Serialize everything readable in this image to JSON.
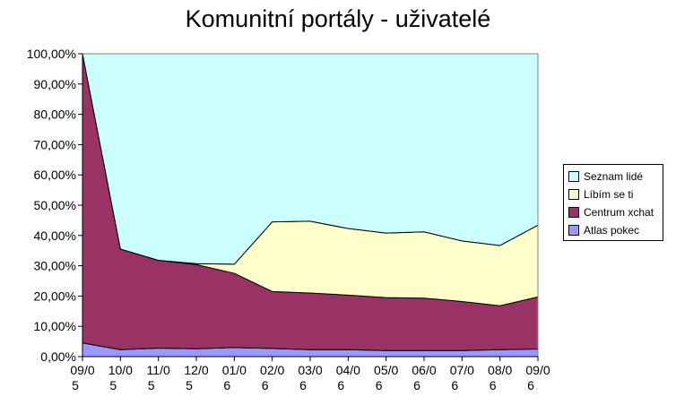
{
  "chart_data": {
    "type": "area",
    "stacked": "percent",
    "title": "Komunitní portály - uživatelé",
    "xlabel": "",
    "ylabel": "",
    "categories": [
      "09/05",
      "10/05",
      "11/05",
      "12/05",
      "01/06",
      "02/06",
      "03/06",
      "04/06",
      "05/06",
      "06/06",
      "07/06",
      "08/06",
      "09/06"
    ],
    "ylim": [
      0,
      100
    ],
    "yticks": [
      "0,00%",
      "10,00%",
      "20,00%",
      "30,00%",
      "40,00%",
      "50,00%",
      "60,00%",
      "70,00%",
      "80,00%",
      "90,00%",
      "100,00%"
    ],
    "grid": false,
    "legend_position": "right",
    "series": [
      {
        "name": "Atlas pokec",
        "color": "#9999ff",
        "values": [
          4.5,
          2.3,
          2.8,
          2.6,
          3.0,
          2.7,
          2.3,
          2.3,
          2.0,
          2.0,
          2.0,
          2.3,
          2.5
        ]
      },
      {
        "name": "Centrum xchat",
        "color": "#993366",
        "values": [
          95.5,
          33.2,
          29.0,
          27.8,
          24.5,
          18.8,
          18.7,
          18.0,
          17.5,
          17.3,
          16.2,
          14.5,
          17.2
        ]
      },
      {
        "name": "Líbím se ti",
        "color": "#ffffcc",
        "values": [
          0.0,
          0.0,
          0.0,
          0.3,
          3.0,
          23.0,
          23.7,
          22.0,
          21.3,
          21.9,
          20.0,
          19.9,
          23.7
        ]
      },
      {
        "name": "Seznam lidé",
        "color": "#ccffff",
        "values": [
          0.0,
          64.5,
          68.2,
          69.3,
          69.5,
          55.5,
          55.3,
          57.7,
          59.2,
          58.8,
          61.8,
          63.3,
          56.6
        ]
      }
    ],
    "legend_order": [
      "Seznam lidé",
      "Líbím se ti",
      "Centrum xchat",
      "Atlas pokec"
    ]
  }
}
